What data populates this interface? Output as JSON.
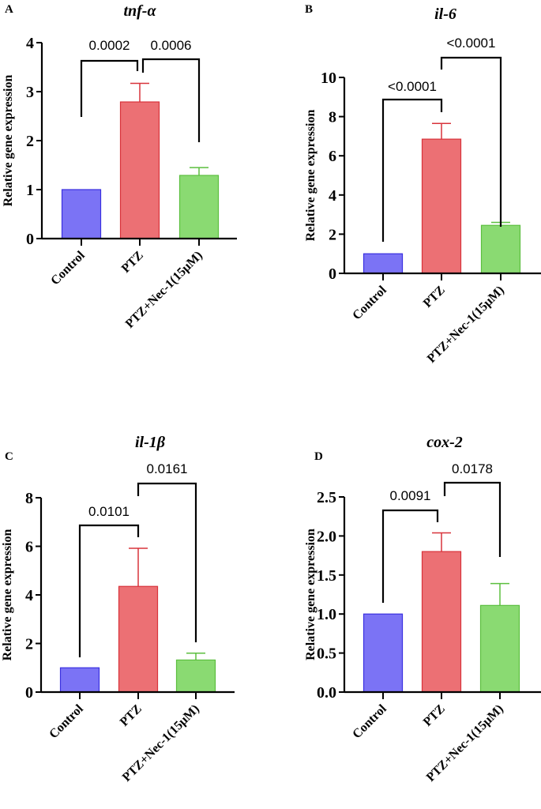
{
  "chart_data": [
    {
      "type": "bar",
      "panel_label": "A",
      "title": "tnf-α",
      "ylabel": "Relative gene expression",
      "xlabel": "",
      "categories": [
        "Control",
        "PTZ",
        "PTZ+Nec-1(15μM)"
      ],
      "values": [
        1.0,
        2.79,
        1.29
      ],
      "error_upper": [
        1.0,
        3.17,
        1.45
      ],
      "colors": [
        "#7b73f5",
        "#ec7074",
        "#8ada72"
      ],
      "edge_colors": [
        "#3a30e0",
        "#d8333b",
        "#5cbf3f"
      ],
      "ylim": [
        0,
        4
      ],
      "yticks": [
        "0",
        "1",
        "2",
        "3",
        "4"
      ],
      "comparisons": [
        {
          "from": 0,
          "to": 1,
          "label": "0.0002"
        },
        {
          "from": 1,
          "to": 2,
          "label": "0.0006"
        }
      ]
    },
    {
      "type": "bar",
      "panel_label": "B",
      "title": "il-6",
      "ylabel": "Relative gene expression",
      "xlabel": "",
      "categories": [
        "Control",
        "PTZ",
        "PTZ+Nec-1(15μM)"
      ],
      "values": [
        1.0,
        6.85,
        2.45
      ],
      "error_upper": [
        1.0,
        7.65,
        2.6
      ],
      "colors": [
        "#7b73f5",
        "#ec7074",
        "#8ada72"
      ],
      "edge_colors": [
        "#3a30e0",
        "#d8333b",
        "#5cbf3f"
      ],
      "ylim": [
        0,
        10
      ],
      "yticks": [
        "0",
        "2",
        "4",
        "6",
        "8",
        "10"
      ],
      "comparisons": [
        {
          "from": 0,
          "to": 1,
          "label": "<0.0001"
        },
        {
          "from": 1,
          "to": 2,
          "label": "<0.0001"
        }
      ]
    },
    {
      "type": "bar",
      "panel_label": "C",
      "title": "il-1β",
      "ylabel": "Relative gene expression",
      "xlabel": "",
      "categories": [
        "Control",
        "PTZ",
        "PTZ+Nec-1(15μM)"
      ],
      "values": [
        1.0,
        4.35,
        1.32
      ],
      "error_upper": [
        1.0,
        5.92,
        1.6
      ],
      "colors": [
        "#7b73f5",
        "#ec7074",
        "#8ada72"
      ],
      "edge_colors": [
        "#3a30e0",
        "#d8333b",
        "#5cbf3f"
      ],
      "ylim": [
        0,
        8
      ],
      "yticks": [
        "0",
        "2",
        "4",
        "6",
        "8"
      ],
      "comparisons": [
        {
          "from": 0,
          "to": 1,
          "label": "0.0101"
        },
        {
          "from": 1,
          "to": 2,
          "label": "0.0161"
        }
      ]
    },
    {
      "type": "bar",
      "panel_label": "D",
      "title": "cox-2",
      "ylabel": "Relative gene expression",
      "xlabel": "",
      "categories": [
        "Control",
        "PTZ",
        "PTZ+Nec-1(15μM)"
      ],
      "values": [
        1.0,
        1.8,
        1.11
      ],
      "error_upper": [
        1.0,
        2.04,
        1.39
      ],
      "colors": [
        "#7b73f5",
        "#ec7074",
        "#8ada72"
      ],
      "edge_colors": [
        "#3a30e0",
        "#d8333b",
        "#5cbf3f"
      ],
      "ylim": [
        0,
        2.5
      ],
      "yticks": [
        "0.0",
        "0.5",
        "1.0",
        "1.5",
        "2.0",
        "2.5"
      ],
      "comparisons": [
        {
          "from": 0,
          "to": 1,
          "label": "0.0091"
        },
        {
          "from": 1,
          "to": 2,
          "label": "0.0178"
        }
      ]
    }
  ]
}
